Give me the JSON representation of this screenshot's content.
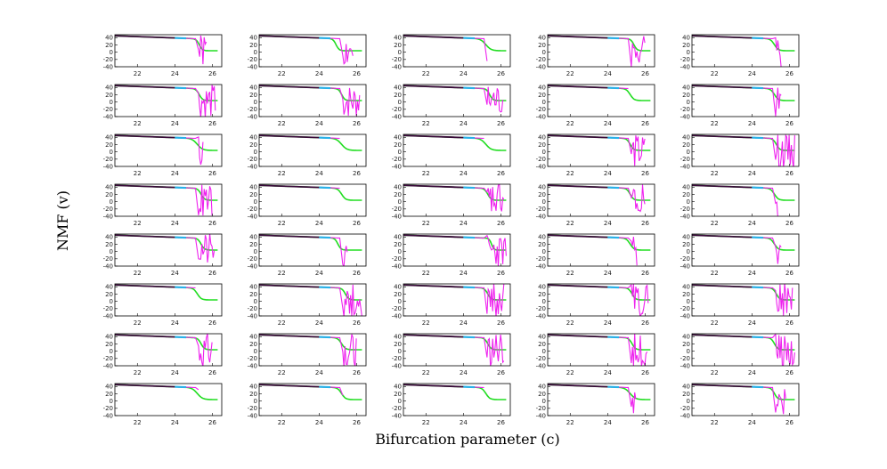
{
  "chart_data": {
    "type": "line",
    "layout": "small-multiples",
    "rows": 8,
    "cols": 5,
    "xlabel": "Bifurcation parameter (c)",
    "ylabel": "NMF (v)",
    "xlim": [
      20.8,
      26.5
    ],
    "ylim": [
      -40,
      48
    ],
    "xticks": [
      22,
      24,
      26
    ],
    "yticks": [
      40,
      20,
      0,
      -20,
      -40
    ],
    "colors": {
      "dark_trend": "#3a0a3a",
      "blue_segment": "#2ab0e8",
      "green_fit": "#22dd22",
      "magenta_signal": "#ee22ee",
      "frame": "#000000"
    },
    "series_shape": {
      "start_x": 20.8,
      "start_y": 45,
      "tip_x": 25.2,
      "tip_y": 37,
      "green_low": 4,
      "green_end_x": 26.3,
      "blue_from_x": 24.0,
      "blue_to_x": 24.6
    },
    "panels": [
      {
        "r": 0,
        "c": 0,
        "gd": 0.1,
        "sharp": 1.2,
        "mx": 25.7,
        "seed": 1
      },
      {
        "r": 0,
        "c": 1,
        "gd": -0.3,
        "sharp": 1.2,
        "mx": 25.8,
        "seed": 2
      },
      {
        "r": 0,
        "c": 2,
        "gd": 0.0,
        "sharp": 2.0,
        "mx": 25.3,
        "seed": 3
      },
      {
        "r": 0,
        "c": 3,
        "gd": 0.2,
        "sharp": 1.2,
        "mx": 26.0,
        "seed": 4
      },
      {
        "r": 0,
        "c": 4,
        "gd": 0.0,
        "sharp": 1.5,
        "mx": 25.6,
        "seed": 5
      },
      {
        "r": 1,
        "c": 0,
        "gd": 0.1,
        "sharp": 1.3,
        "mx": 26.2,
        "seed": 6
      },
      {
        "r": 1,
        "c": 1,
        "gd": 0.0,
        "sharp": 1.2,
        "mx": 26.2,
        "seed": 7
      },
      {
        "r": 1,
        "c": 2,
        "gd": 0.2,
        "sharp": 1.2,
        "mx": 26.1,
        "seed": 8
      },
      {
        "r": 1,
        "c": 3,
        "gd": 0.0,
        "sharp": 1.5,
        "mx": 25.0,
        "seed": 9
      },
      {
        "r": 1,
        "c": 4,
        "gd": 0.0,
        "sharp": 1.5,
        "mx": 25.6,
        "seed": 10
      },
      {
        "r": 2,
        "c": 0,
        "gd": 0.0,
        "sharp": 2.0,
        "mx": 25.5,
        "seed": 11
      },
      {
        "r": 2,
        "c": 1,
        "gd": 0.0,
        "sharp": 2.0,
        "mx": 25.2,
        "seed": 12
      },
      {
        "r": 2,
        "c": 2,
        "gd": 0.0,
        "sharp": 2.0,
        "mx": 25.1,
        "seed": 13
      },
      {
        "r": 2,
        "c": 3,
        "gd": 0.0,
        "sharp": 1.3,
        "mx": 26.0,
        "seed": 14
      },
      {
        "r": 2,
        "c": 4,
        "gd": 0.1,
        "sharp": 1.3,
        "mx": 26.3,
        "seed": 15
      },
      {
        "r": 3,
        "c": 0,
        "gd": 0.2,
        "sharp": 1.3,
        "mx": 26.0,
        "seed": 16
      },
      {
        "r": 3,
        "c": 1,
        "gd": 0.0,
        "sharp": 1.5,
        "mx": 25.2,
        "seed": 17
      },
      {
        "r": 3,
        "c": 2,
        "gd": 0.1,
        "sharp": 1.3,
        "mx": 26.2,
        "seed": 18
      },
      {
        "r": 3,
        "c": 3,
        "gd": 0.0,
        "sharp": 1.3,
        "mx": 26.0,
        "seed": 19
      },
      {
        "r": 3,
        "c": 4,
        "gd": 0.0,
        "sharp": 1.5,
        "mx": 25.4,
        "seed": 20
      },
      {
        "r": 4,
        "c": 0,
        "gd": 0.2,
        "sharp": 1.3,
        "mx": 26.1,
        "seed": 21
      },
      {
        "r": 4,
        "c": 1,
        "gd": -0.2,
        "sharp": 1.2,
        "mx": 25.5,
        "seed": 22
      },
      {
        "r": 4,
        "c": 2,
        "gd": 0.3,
        "sharp": 0.9,
        "mx": 26.3,
        "seed": 23
      },
      {
        "r": 4,
        "c": 3,
        "gd": 0.0,
        "sharp": 1.5,
        "mx": 25.6,
        "seed": 24
      },
      {
        "r": 4,
        "c": 4,
        "gd": 0.0,
        "sharp": 1.5,
        "mx": 25.6,
        "seed": 25
      },
      {
        "r": 5,
        "c": 0,
        "gd": 0.0,
        "sharp": 1.5,
        "mx": 25.2,
        "seed": 26
      },
      {
        "r": 5,
        "c": 1,
        "gd": 0.2,
        "sharp": 1.3,
        "mx": 26.3,
        "seed": 27
      },
      {
        "r": 5,
        "c": 2,
        "gd": 0.1,
        "sharp": 1.3,
        "mx": 26.2,
        "seed": 28
      },
      {
        "r": 5,
        "c": 3,
        "gd": 0.1,
        "sharp": 1.3,
        "mx": 26.2,
        "seed": 29
      },
      {
        "r": 5,
        "c": 4,
        "gd": 0.1,
        "sharp": 1.3,
        "mx": 26.2,
        "seed": 30
      },
      {
        "r": 6,
        "c": 0,
        "gd": 0.2,
        "sharp": 1.3,
        "mx": 26.0,
        "seed": 31
      },
      {
        "r": 6,
        "c": 1,
        "gd": 0.0,
        "sharp": 1.5,
        "mx": 26.0,
        "seed": 32
      },
      {
        "r": 6,
        "c": 2,
        "gd": 0.1,
        "sharp": 1.3,
        "mx": 26.2,
        "seed": 33
      },
      {
        "r": 6,
        "c": 3,
        "gd": 0.1,
        "sharp": 1.3,
        "mx": 26.1,
        "seed": 34
      },
      {
        "r": 6,
        "c": 4,
        "gd": 0.0,
        "sharp": 1.3,
        "mx": 26.3,
        "seed": 35
      },
      {
        "r": 7,
        "c": 0,
        "gd": 0.0,
        "sharp": 2.0,
        "mx": 25.3,
        "seed": 36
      },
      {
        "r": 7,
        "c": 1,
        "gd": 0.0,
        "sharp": 1.5,
        "mx": 25.3,
        "seed": 37
      },
      {
        "r": 7,
        "c": 2,
        "gd": 0.0,
        "sharp": 1.5,
        "mx": 25.1,
        "seed": 38
      },
      {
        "r": 7,
        "c": 3,
        "gd": 0.0,
        "sharp": 2.0,
        "mx": 25.5,
        "seed": 39
      },
      {
        "r": 7,
        "c": 4,
        "gd": 0.0,
        "sharp": 1.3,
        "mx": 25.8,
        "seed": 40
      }
    ]
  }
}
